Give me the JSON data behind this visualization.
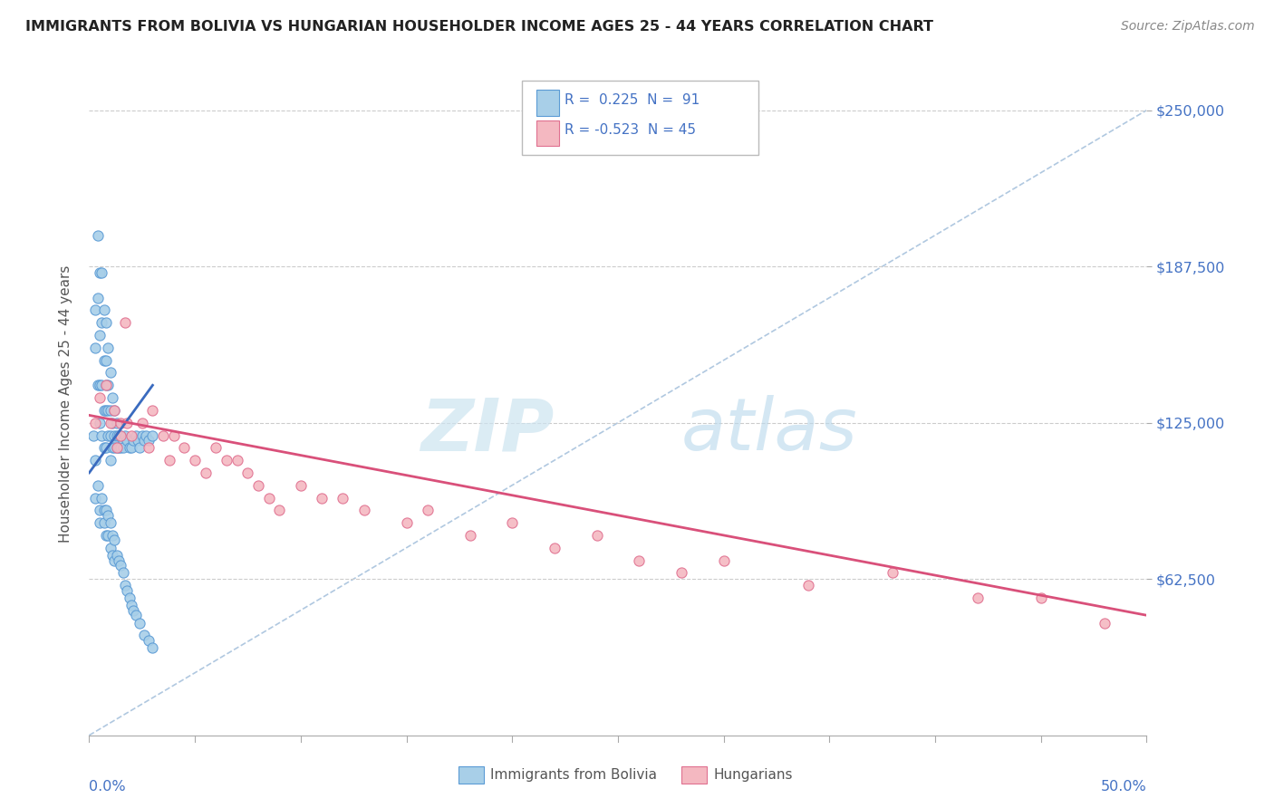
{
  "title": "IMMIGRANTS FROM BOLIVIA VS HUNGARIAN HOUSEHOLDER INCOME AGES 25 - 44 YEARS CORRELATION CHART",
  "source": "Source: ZipAtlas.com",
  "ylabel": "Householder Income Ages 25 - 44 years",
  "ytick_labels": [
    "$62,500",
    "$125,000",
    "$187,500",
    "$250,000"
  ],
  "ytick_values": [
    62500,
    125000,
    187500,
    250000
  ],
  "ylim": [
    0,
    265000
  ],
  "xlim": [
    0.0,
    0.5
  ],
  "blue_scatter_color": "#a8cfe8",
  "blue_edge_color": "#5b9bd5",
  "pink_scatter_color": "#f4b8c1",
  "pink_edge_color": "#e07090",
  "blue_line_color": "#3a6bbf",
  "pink_line_color": "#d9507a",
  "ref_line_color": "#b0c8e0",
  "watermark_zip_color": "#cde4f0",
  "watermark_atlas_color": "#b8d8ec",
  "bolivia_x": [
    0.002,
    0.003,
    0.003,
    0.003,
    0.004,
    0.004,
    0.004,
    0.005,
    0.005,
    0.005,
    0.005,
    0.006,
    0.006,
    0.006,
    0.006,
    0.007,
    0.007,
    0.007,
    0.007,
    0.008,
    0.008,
    0.008,
    0.008,
    0.008,
    0.009,
    0.009,
    0.009,
    0.009,
    0.01,
    0.01,
    0.01,
    0.01,
    0.011,
    0.011,
    0.011,
    0.012,
    0.012,
    0.012,
    0.013,
    0.013,
    0.013,
    0.014,
    0.014,
    0.015,
    0.015,
    0.016,
    0.016,
    0.017,
    0.018,
    0.019,
    0.02,
    0.021,
    0.022,
    0.023,
    0.024,
    0.025,
    0.026,
    0.027,
    0.028,
    0.03,
    0.003,
    0.004,
    0.005,
    0.005,
    0.006,
    0.007,
    0.007,
    0.008,
    0.008,
    0.009,
    0.009,
    0.01,
    0.01,
    0.011,
    0.011,
    0.012,
    0.012,
    0.013,
    0.014,
    0.015,
    0.016,
    0.017,
    0.018,
    0.019,
    0.02,
    0.021,
    0.022,
    0.024,
    0.026,
    0.028,
    0.03
  ],
  "bolivia_y": [
    120000,
    170000,
    155000,
    110000,
    200000,
    175000,
    140000,
    185000,
    160000,
    140000,
    125000,
    185000,
    165000,
    140000,
    120000,
    170000,
    150000,
    130000,
    115000,
    165000,
    150000,
    140000,
    130000,
    115000,
    155000,
    140000,
    130000,
    120000,
    145000,
    130000,
    120000,
    110000,
    135000,
    125000,
    115000,
    130000,
    120000,
    115000,
    125000,
    120000,
    115000,
    120000,
    115000,
    120000,
    115000,
    118000,
    115000,
    120000,
    118000,
    115000,
    115000,
    118000,
    120000,
    118000,
    115000,
    120000,
    118000,
    120000,
    118000,
    120000,
    95000,
    100000,
    90000,
    85000,
    95000,
    90000,
    85000,
    90000,
    80000,
    88000,
    80000,
    85000,
    75000,
    80000,
    72000,
    78000,
    70000,
    72000,
    70000,
    68000,
    65000,
    60000,
    58000,
    55000,
    52000,
    50000,
    48000,
    45000,
    40000,
    38000,
    35000
  ],
  "hungarian_x": [
    0.003,
    0.005,
    0.008,
    0.01,
    0.012,
    0.013,
    0.015,
    0.015,
    0.017,
    0.018,
    0.02,
    0.025,
    0.028,
    0.03,
    0.035,
    0.038,
    0.04,
    0.045,
    0.05,
    0.055,
    0.06,
    0.065,
    0.07,
    0.075,
    0.08,
    0.085,
    0.09,
    0.1,
    0.11,
    0.12,
    0.13,
    0.15,
    0.16,
    0.18,
    0.2,
    0.22,
    0.24,
    0.26,
    0.28,
    0.3,
    0.34,
    0.38,
    0.42,
    0.45,
    0.48
  ],
  "hungarian_y": [
    125000,
    135000,
    140000,
    125000,
    130000,
    115000,
    125000,
    120000,
    165000,
    125000,
    120000,
    125000,
    115000,
    130000,
    120000,
    110000,
    120000,
    115000,
    110000,
    105000,
    115000,
    110000,
    110000,
    105000,
    100000,
    95000,
    90000,
    100000,
    95000,
    95000,
    90000,
    85000,
    90000,
    80000,
    85000,
    75000,
    80000,
    70000,
    65000,
    70000,
    60000,
    65000,
    55000,
    55000,
    45000
  ],
  "blue_line_x": [
    0.0,
    0.03
  ],
  "blue_line_y": [
    105000,
    140000
  ],
  "pink_line_x": [
    0.0,
    0.5
  ],
  "pink_line_y": [
    128000,
    48000
  ],
  "ref_line_x": [
    0.0,
    0.5
  ],
  "ref_line_y": [
    0,
    250000
  ]
}
